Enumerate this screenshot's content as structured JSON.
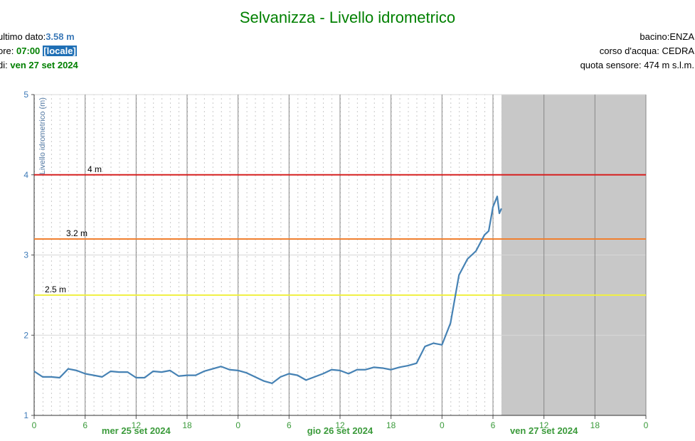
{
  "chart_data": {
    "type": "line",
    "title": "Selvanizza - Livello idrometrico",
    "info_left": [
      {
        "label": "ultimo dato:",
        "value": "3.58 m"
      },
      {
        "label": "ore:",
        "value": "07:00",
        "tag": "[locale]"
      },
      {
        "label": "di:",
        "value": "ven 27 set 2024"
      }
    ],
    "info_right": [
      "bacino:ENZA",
      "corso d'acqua: CEDRA",
      "quota sensore: 474 m s.l.m."
    ],
    "y_label": "Livello idrometrico (m)",
    "day_labels": [
      "mer 25 set 2024",
      "gio 26 set 2024",
      "ven 27 set 2024"
    ],
    "xlim": [
      0,
      72
    ],
    "xticks": [
      0,
      6,
      12,
      18,
      {
        "value": 24,
        "label": "0"
      },
      {
        "value": 30,
        "label": "6"
      },
      {
        "value": 36,
        "label": "12"
      },
      {
        "value": 42,
        "label": "18"
      },
      {
        "value": 48,
        "label": "0"
      },
      {
        "value": 54,
        "label": "6"
      },
      {
        "value": 60,
        "label": "12"
      },
      {
        "value": 66,
        "label": "18"
      },
      {
        "value": 72,
        "label": "0"
      }
    ],
    "ylim": [
      1,
      5
    ],
    "yticks": [
      1,
      2,
      3,
      4,
      5
    ],
    "grid": true,
    "shaded_xlim": [
      55,
      72
    ],
    "thresholds": [
      {
        "value": 4,
        "label": "4 m",
        "color": "#d62020"
      },
      {
        "value": 3.2,
        "label": "3.2 m",
        "color": "#f08030"
      },
      {
        "value": 2.5,
        "label": "2.5 m",
        "color": "#f0f040"
      }
    ],
    "x": [
      0,
      1,
      2,
      3,
      4,
      5,
      6,
      7,
      8,
      9,
      10,
      11,
      12,
      13,
      14,
      15,
      16,
      17,
      18,
      19,
      20,
      21,
      22,
      23,
      24,
      25,
      26,
      27,
      28,
      29,
      30,
      31,
      32,
      33,
      34,
      35,
      36,
      37,
      38,
      39,
      40,
      41,
      42,
      43,
      44,
      45,
      46,
      47,
      48,
      49,
      50,
      51,
      52,
      53,
      53.5,
      54,
      54.5,
      54.75,
      55
    ],
    "series": [
      {
        "name": "Livello idrometrico",
        "color": "#4682b4",
        "values": [
          1.55,
          1.48,
          1.48,
          1.47,
          1.58,
          1.56,
          1.52,
          1.5,
          1.48,
          1.55,
          1.54,
          1.54,
          1.47,
          1.47,
          1.55,
          1.54,
          1.56,
          1.49,
          1.5,
          1.5,
          1.55,
          1.58,
          1.61,
          1.57,
          1.56,
          1.53,
          1.48,
          1.43,
          1.4,
          1.48,
          1.52,
          1.5,
          1.44,
          1.48,
          1.52,
          1.57,
          1.56,
          1.52,
          1.57,
          1.57,
          1.6,
          1.59,
          1.57,
          1.6,
          1.62,
          1.65,
          1.86,
          1.9,
          1.88,
          2.15,
          2.75,
          2.95,
          3.05,
          3.25,
          3.3,
          3.6,
          3.73,
          3.52,
          3.58
        ]
      }
    ]
  }
}
